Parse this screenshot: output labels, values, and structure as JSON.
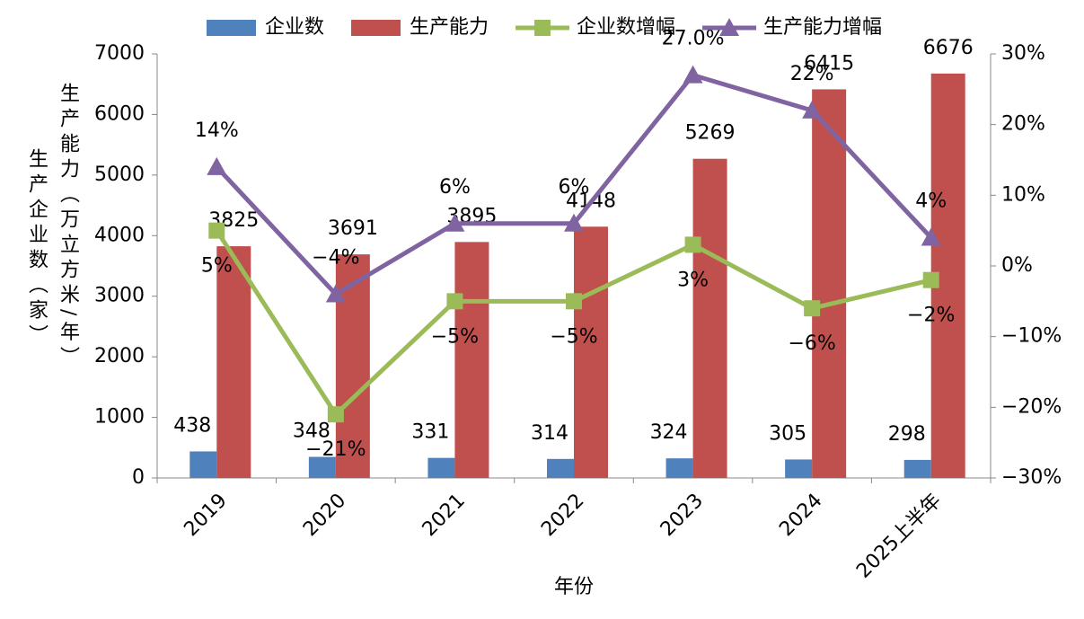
{
  "chart_data": {
    "type": "bar_line",
    "categories": [
      "2019",
      "2020",
      "2021",
      "2022",
      "2023",
      "2024",
      "2025上半年"
    ],
    "series": [
      {
        "name": "企业数",
        "kind": "bar",
        "color": "#4f81bd",
        "values": [
          438,
          348,
          331,
          314,
          324,
          305,
          298
        ]
      },
      {
        "name": "生产能力",
        "kind": "bar",
        "color": "#c0504d",
        "values": [
          3825,
          3691,
          3895,
          4148,
          5269,
          6415,
          6676
        ]
      },
      {
        "name": "企业数增幅",
        "kind": "line",
        "marker": "square",
        "axis": "y2",
        "color": "#9bbb59",
        "values": [
          5,
          -21,
          -5,
          -5,
          3,
          -6,
          -2
        ],
        "value_labels": [
          "5%",
          "−21%",
          "−5%",
          "−5%",
          "3%",
          "−6%",
          "−2%"
        ]
      },
      {
        "name": "生产能力增幅",
        "kind": "line",
        "marker": "triangle",
        "axis": "y2",
        "color": "#8064a2",
        "values": [
          14,
          -4,
          6,
          6,
          27,
          22,
          4
        ],
        "value_labels": [
          "14%",
          "−4%",
          "6%",
          "6%",
          "27.0%",
          "22%",
          "4%"
        ]
      }
    ],
    "ylabel": "生产企业数（家）",
    "ylabel2": "生产能力（万立方米/年）",
    "xlabel": "年份",
    "ylim": [
      0,
      7000
    ],
    "yticks": [
      0,
      1000,
      2000,
      3000,
      4000,
      5000,
      6000,
      7000
    ],
    "y2lim": [
      -30,
      30
    ],
    "y2ticks": [
      {
        "value": -30,
        "label": "−30%"
      },
      {
        "value": -20,
        "label": "−20%"
      },
      {
        "value": -10,
        "label": "−10%"
      },
      {
        "value": 0,
        "label": "0%"
      },
      {
        "value": 10,
        "label": "10%"
      },
      {
        "value": 20,
        "label": "20%"
      },
      {
        "value": 30,
        "label": "30%"
      }
    ],
    "grid": false,
    "legend": "top"
  }
}
